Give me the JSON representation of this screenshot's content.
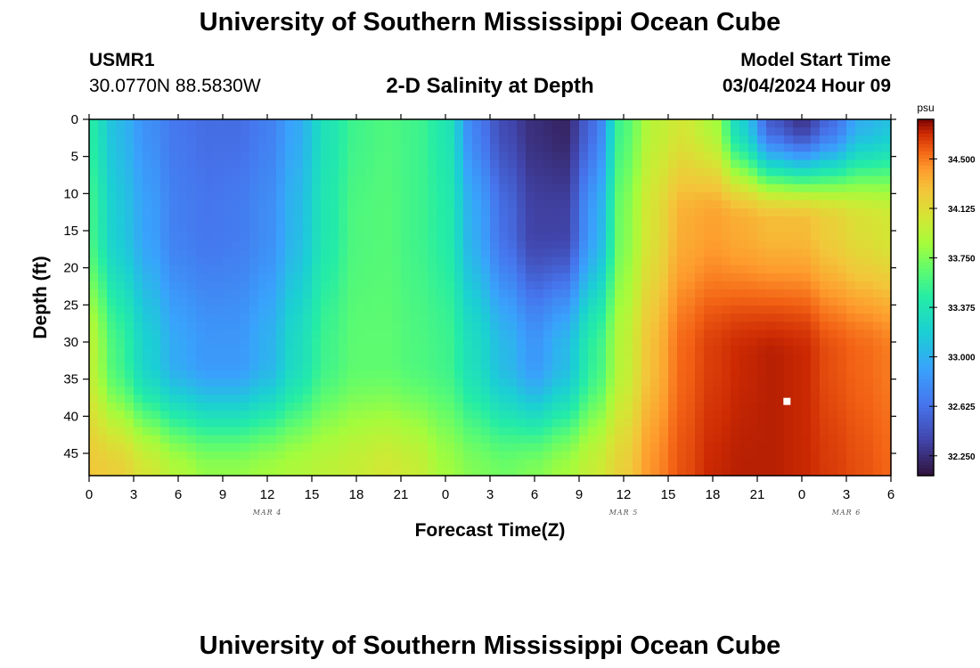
{
  "header": {
    "title": "University of Southern Mississippi Ocean Cube",
    "station_id": "USMR1",
    "lat_lon": "30.0770N  88.5830W",
    "subtitle": "2-D Salinity at Depth",
    "model_start_label": "Model Start Time",
    "model_start_value": "03/04/2024 Hour 09"
  },
  "footer": {
    "title": "University of Southern Mississippi Ocean Cube"
  },
  "chart_data": {
    "type": "heatmap",
    "title": "2-D Salinity at Depth",
    "xlabel": "Forecast Time(Z)",
    "ylabel": "Depth (ft)",
    "x_tick_labels": [
      "0",
      "3",
      "6",
      "9",
      "12",
      "15",
      "18",
      "21",
      "0",
      "3",
      "6",
      "9",
      "12",
      "15",
      "18",
      "21",
      "0",
      "3",
      "6"
    ],
    "x_date_labels": [
      {
        "label": "MAR 4",
        "tick_index": 4
      },
      {
        "label": "MAR 5",
        "tick_index": 12
      },
      {
        "label": "MAR 6",
        "tick_index": 17
      }
    ],
    "xlim_hours": [
      0,
      54
    ],
    "y_tick_labels": [
      "0",
      "5",
      "10",
      "15",
      "20",
      "25",
      "30",
      "35",
      "40",
      "45"
    ],
    "ylim": [
      0,
      48
    ],
    "y_inverted": true,
    "colorbar": {
      "unit": "psu",
      "min": 32.1,
      "max": 34.8,
      "tick_labels": [
        "34.500",
        "34.125",
        "33.750",
        "33.375",
        "33.000",
        "32.625",
        "32.250"
      ]
    },
    "marker": {
      "x_hours": 47,
      "depth_ft": 38
    },
    "columns": [
      {
        "x_hours": 0,
        "surface": 33.45,
        "mid": 33.55,
        "deep": 33.95,
        "bottom": 34.25
      },
      {
        "x_hours": 2,
        "surface": 33.05,
        "mid": 33.15,
        "deep": 33.55,
        "bottom": 34.2
      },
      {
        "x_hours": 4,
        "surface": 32.8,
        "mid": 32.9,
        "deep": 33.2,
        "bottom": 34.05
      },
      {
        "x_hours": 6,
        "surface": 32.65,
        "mid": 32.7,
        "deep": 32.95,
        "bottom": 33.9
      },
      {
        "x_hours": 8,
        "surface": 32.6,
        "mid": 32.65,
        "deep": 32.85,
        "bottom": 33.8
      },
      {
        "x_hours": 10,
        "surface": 32.6,
        "mid": 32.68,
        "deep": 32.85,
        "bottom": 33.8
      },
      {
        "x_hours": 12,
        "surface": 32.7,
        "mid": 32.78,
        "deep": 33.0,
        "bottom": 33.85
      },
      {
        "x_hours": 14,
        "surface": 32.95,
        "mid": 33.05,
        "deep": 33.3,
        "bottom": 33.9
      },
      {
        "x_hours": 16,
        "surface": 33.35,
        "mid": 33.4,
        "deep": 33.55,
        "bottom": 33.95
      },
      {
        "x_hours": 18,
        "surface": 33.55,
        "mid": 33.6,
        "deep": 33.65,
        "bottom": 34.0
      },
      {
        "x_hours": 20,
        "surface": 33.6,
        "mid": 33.62,
        "deep": 33.65,
        "bottom": 34.05
      },
      {
        "x_hours": 22,
        "surface": 33.55,
        "mid": 33.55,
        "deep": 33.6,
        "bottom": 34.0
      },
      {
        "x_hours": 24,
        "surface": 33.4,
        "mid": 33.45,
        "deep": 33.55,
        "bottom": 33.85
      },
      {
        "x_hours": 26,
        "surface": 32.7,
        "mid": 32.95,
        "deep": 33.3,
        "bottom": 33.75
      },
      {
        "x_hours": 28,
        "surface": 32.4,
        "mid": 32.6,
        "deep": 33.05,
        "bottom": 33.7
      },
      {
        "x_hours": 30,
        "surface": 32.25,
        "mid": 32.35,
        "deep": 32.85,
        "bottom": 33.75
      },
      {
        "x_hours": 32,
        "surface": 32.2,
        "mid": 32.35,
        "deep": 33.05,
        "bottom": 33.85
      },
      {
        "x_hours": 34,
        "surface": 32.6,
        "mid": 32.9,
        "deep": 33.5,
        "bottom": 34.0
      },
      {
        "x_hours": 36,
        "surface": 33.6,
        "mid": 33.75,
        "deep": 33.95,
        "bottom": 34.2
      },
      {
        "x_hours": 38,
        "surface": 33.95,
        "mid": 34.1,
        "deep": 34.3,
        "bottom": 34.45
      },
      {
        "x_hours": 40,
        "surface": 34.05,
        "mid": 34.35,
        "deep": 34.55,
        "bottom": 34.6
      },
      {
        "x_hours": 42,
        "surface": 33.9,
        "mid": 34.4,
        "deep": 34.65,
        "bottom": 34.7
      },
      {
        "x_hours": 44,
        "surface": 33.2,
        "mid": 34.35,
        "deep": 34.7,
        "bottom": 34.72
      },
      {
        "x_hours": 46,
        "surface": 32.5,
        "mid": 34.3,
        "deep": 34.72,
        "bottom": 34.72
      },
      {
        "x_hours": 48,
        "surface": 32.3,
        "mid": 34.3,
        "deep": 34.7,
        "bottom": 34.7
      },
      {
        "x_hours": 50,
        "surface": 32.6,
        "mid": 34.2,
        "deep": 34.6,
        "bottom": 34.65
      },
      {
        "x_hours": 52,
        "surface": 33.0,
        "mid": 34.1,
        "deep": 34.55,
        "bottom": 34.6
      },
      {
        "x_hours": 54,
        "surface": 33.1,
        "mid": 34.05,
        "deep": 34.5,
        "bottom": 34.55
      }
    ],
    "profile_depths_ft": {
      "surface": 0,
      "mid": 14,
      "deep": 32,
      "bottom": 48
    }
  }
}
